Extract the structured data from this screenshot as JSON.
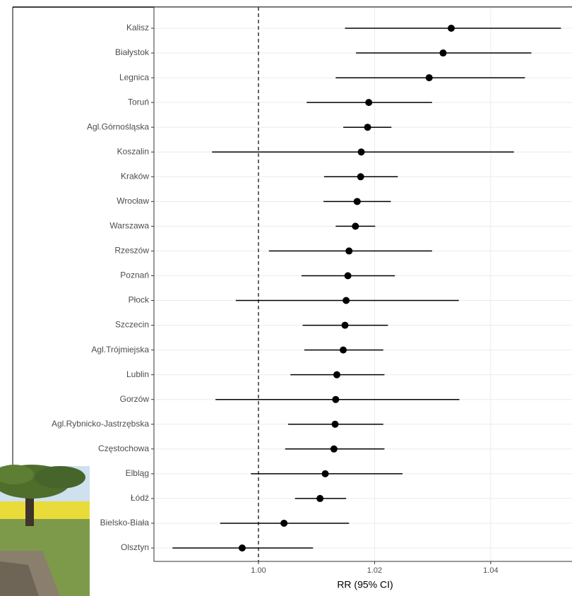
{
  "chart_data": {
    "type": "forest",
    "xlabel": "RR (95% CI)",
    "categories": [
      "Kalisz",
      "Białystok",
      "Legnica",
      "Toruń",
      "Agl.Górnośląska",
      "Koszalin",
      "Kraków",
      "Wrocław",
      "Warszawa",
      "Rzeszów",
      "Poznań",
      "Płock",
      "Szczecin",
      "Agl.Trójmiejska",
      "Lublin",
      "Gorzów",
      "Agl.Rybnicko-Jastrzębska",
      "Częstochowa",
      "Elbląg",
      "Łódź",
      "Bielsko-Biała",
      "Olsztyn"
    ],
    "series": [
      {
        "color": "#000000",
        "values": [
          1.0332,
          1.0318,
          1.0294,
          1.019,
          1.0188,
          1.0177,
          1.0176,
          1.017,
          1.0167,
          1.0156,
          1.0154,
          1.0151,
          1.0149,
          1.0146,
          1.0135,
          1.0133,
          1.0132,
          1.013,
          1.0115,
          1.0106,
          1.0044,
          0.9972
        ],
        "lower": [
          1.0149,
          1.0168,
          1.0133,
          1.0083,
          1.0146,
          0.992,
          1.0113,
          1.0112,
          1.0133,
          1.0018,
          1.0074,
          0.9961,
          1.0076,
          1.0079,
          1.0055,
          0.9926,
          1.0051,
          1.0046,
          0.9987,
          1.0063,
          0.9934,
          0.9852
        ],
        "upper": [
          1.0521,
          1.047,
          1.0459,
          1.0299,
          1.0229,
          1.044,
          1.024,
          1.0228,
          1.0201,
          1.0299,
          1.0235,
          1.0345,
          1.0223,
          1.0215,
          1.0217,
          1.0346,
          1.0215,
          1.0217,
          1.0248,
          1.0151,
          1.0156,
          1.0094
        ]
      }
    ],
    "xlim": [
      0.982,
      1.054
    ],
    "xticks": [
      {
        "value": 1,
        "label": "1.00"
      },
      {
        "value": 1.02,
        "label": "1.02"
      },
      {
        "value": 1.04,
        "label": "1.04"
      }
    ],
    "reference_line": 1,
    "grid": true
  }
}
